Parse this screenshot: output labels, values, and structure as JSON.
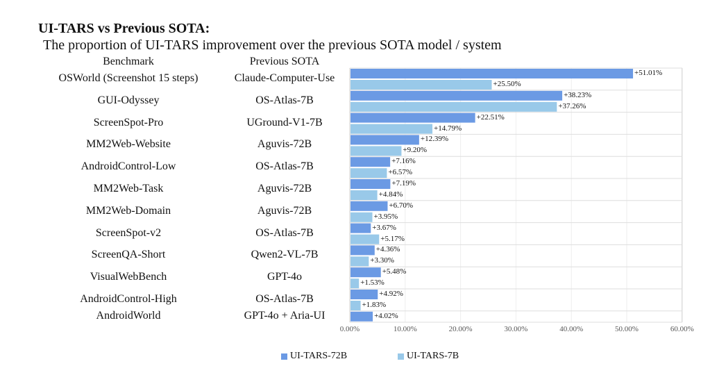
{
  "chart_data": {
    "type": "bar",
    "orientation": "horizontal",
    "title": "UI-TARS vs Previous SOTA:",
    "subtitle": "The proportion of UI-TARS improvement over the previous SOTA model / system",
    "column_headers": [
      "Benchmark",
      "Previous SOTA"
    ],
    "categories": [
      "OSWorld (Screenshot 15 steps)",
      "GUI-Odyssey",
      "ScreenSpot-Pro",
      "MM2Web-Website",
      "AndroidControl-Low",
      "MM2Web-Task",
      "MM2Web-Domain",
      "ScreenSpot-v2",
      "ScreenQA-Short",
      "VisualWebBench",
      "AndroidControl-High",
      "AndroidWorld"
    ],
    "previous_sota": [
      "Claude-Computer-Use",
      "OS-Atlas-7B",
      "UGround-V1-7B",
      "Aguvis-72B",
      "OS-Atlas-7B",
      "Aguvis-72B",
      "Aguvis-72B",
      "OS-Atlas-7B",
      "Qwen2-VL-7B",
      "GPT-4o",
      "OS-Atlas-7B",
      "GPT-4o + Aria-UI"
    ],
    "series": [
      {
        "name": "UI-TARS-72B",
        "color": "#6b9ae4",
        "values": [
          51.01,
          38.23,
          22.51,
          12.39,
          7.16,
          7.19,
          6.7,
          3.67,
          4.36,
          5.48,
          4.92,
          4.02
        ],
        "labels": [
          "+51.01%",
          "+38.23%",
          "+22.51%",
          "+12.39%",
          "+7.16%",
          "+7.19%",
          "+6.70%",
          "+3.67%",
          "+4.36%",
          "+5.48%",
          "+4.92%",
          "+4.02%"
        ]
      },
      {
        "name": "UI-TARS-7B",
        "color": "#99c9e9",
        "values": [
          25.5,
          37.26,
          14.79,
          9.2,
          6.57,
          4.84,
          3.95,
          5.17,
          3.3,
          1.53,
          1.83,
          null
        ],
        "labels": [
          "+25.50%",
          "+37.26%",
          "+14.79%",
          "+9.20%",
          "+6.57%",
          "+4.84%",
          "+3.95%",
          "+5.17%",
          "+3.30%",
          "+1.53%",
          "+1.83%",
          null
        ]
      }
    ],
    "xlim": [
      0,
      60
    ],
    "xticks": [
      "0.00%",
      "10.00%",
      "20.00%",
      "30.00%",
      "40.00%",
      "50.00%",
      "60.00%"
    ],
    "grid": true,
    "legend_position": "bottom"
  }
}
